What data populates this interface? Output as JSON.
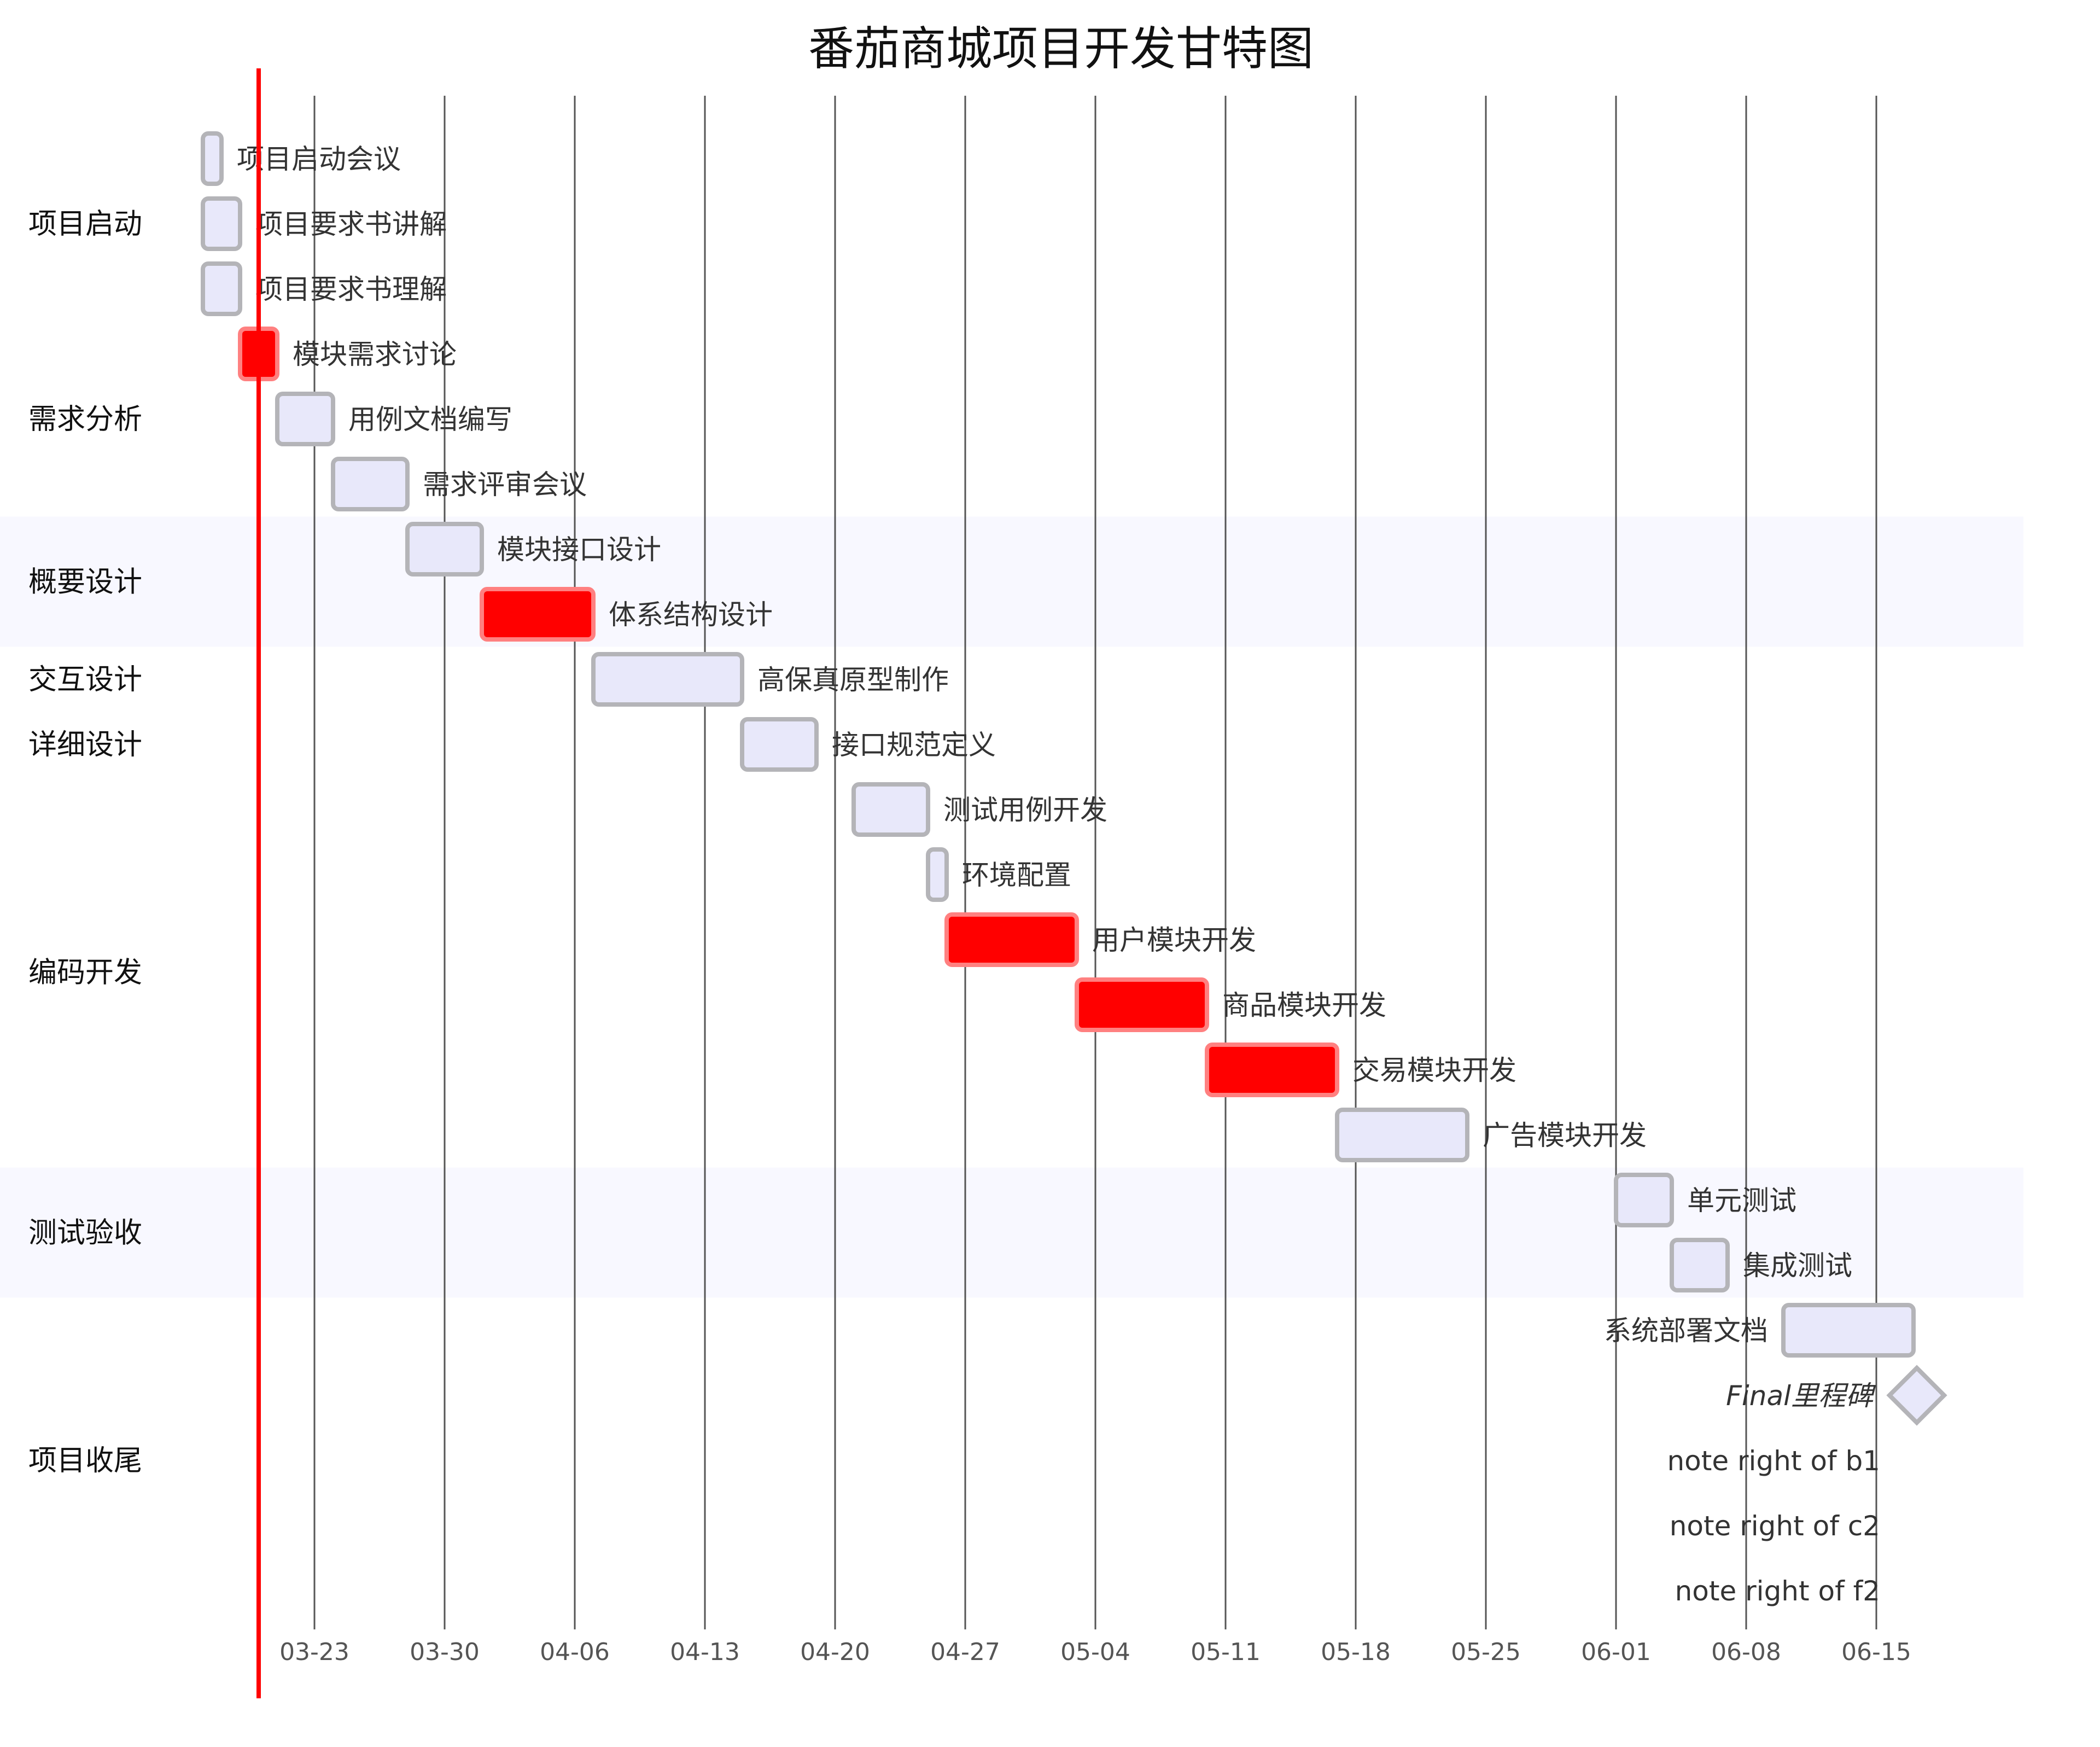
{
  "chart_data": {
    "type": "gantt",
    "title": "番茄商城项目开发甘特图",
    "x_axis": {
      "ticks": [
        "03-23",
        "03-30",
        "04-06",
        "04-13",
        "04-20",
        "04-27",
        "05-04",
        "05-11",
        "05-18",
        "05-25",
        "06-01",
        "06-08",
        "06-15"
      ],
      "range_start": "03-17",
      "range_end": "06-23"
    },
    "today_marker": "03-20",
    "sections": [
      {
        "name": "项目启动",
        "highlight": false,
        "row_span": [
          0,
          3
        ]
      },
      {
        "name": "需求分析",
        "highlight": false,
        "row_span": [
          3,
          6
        ]
      },
      {
        "name": "概要设计",
        "highlight": true,
        "row_span": [
          6,
          8
        ]
      },
      {
        "name": "交互设计",
        "highlight": false,
        "row_span": [
          8,
          9
        ]
      },
      {
        "name": "详细设计",
        "highlight": false,
        "row_span": [
          9,
          10
        ]
      },
      {
        "name": "编码开发",
        "highlight": false,
        "row_span": [
          10,
          16
        ]
      },
      {
        "name": "测试验收",
        "highlight": true,
        "row_span": [
          16,
          18
        ]
      },
      {
        "name": "项目收尾",
        "highlight": false,
        "row_span": [
          18,
          23
        ]
      }
    ],
    "tasks": [
      {
        "name": "项目启动会议",
        "start": "03-17",
        "end": "03-18",
        "kind": "normal"
      },
      {
        "name": "项目要求书讲解",
        "start": "03-17",
        "end": "03-19",
        "kind": "normal"
      },
      {
        "name": "项目要求书理解",
        "start": "03-17",
        "end": "03-19",
        "kind": "normal"
      },
      {
        "name": "模块需求讨论",
        "start": "03-19",
        "end": "03-21",
        "kind": "critical"
      },
      {
        "name": "用例文档编写",
        "start": "03-21",
        "end": "03-24",
        "kind": "normal"
      },
      {
        "name": "需求评审会议",
        "start": "03-24",
        "end": "03-28",
        "kind": "normal"
      },
      {
        "name": "模块接口设计",
        "start": "03-28",
        "end": "04-01",
        "kind": "normal"
      },
      {
        "name": "体系结构设计",
        "start": "04-01",
        "end": "04-07",
        "kind": "critical"
      },
      {
        "name": "高保真原型制作",
        "start": "04-07",
        "end": "04-15",
        "kind": "normal"
      },
      {
        "name": "接口规范定义",
        "start": "04-15",
        "end": "04-19",
        "kind": "normal"
      },
      {
        "name": "测试用例开发",
        "start": "04-21",
        "end": "04-25",
        "kind": "normal"
      },
      {
        "name": "环境配置",
        "start": "04-25",
        "end": "04-26",
        "kind": "normal"
      },
      {
        "name": "用户模块开发",
        "start": "04-26",
        "end": "05-03",
        "kind": "critical"
      },
      {
        "name": "商品模块开发",
        "start": "05-03",
        "end": "05-10",
        "kind": "critical"
      },
      {
        "name": "交易模块开发",
        "start": "05-10",
        "end": "05-17",
        "kind": "critical"
      },
      {
        "name": "广告模块开发",
        "start": "05-17",
        "end": "05-24",
        "kind": "normal"
      },
      {
        "name": "单元测试",
        "start": "06-01",
        "end": "06-04",
        "kind": "normal"
      },
      {
        "name": "集成测试",
        "start": "06-04",
        "end": "06-07",
        "kind": "normal"
      },
      {
        "name": "系统部署文档",
        "start": "06-10",
        "end": "06-17",
        "kind": "normal",
        "label_side": "left"
      },
      {
        "name": "Final里程碑",
        "start": "06-17",
        "end": "06-17",
        "kind": "milestone"
      },
      {
        "name": "note right of b1",
        "kind": "label"
      },
      {
        "name": "note right of c2",
        "kind": "label"
      },
      {
        "name": "note right of f2",
        "kind": "label"
      }
    ],
    "colors": {
      "normal_fill": "#e8e8fa",
      "normal_stroke": "#b4b4b8",
      "critical_fill": "#ff0000",
      "critical_stroke": "#ff8080",
      "today_line": "#ff0000",
      "band": "#f8f8ff",
      "grid": "#555555"
    }
  }
}
